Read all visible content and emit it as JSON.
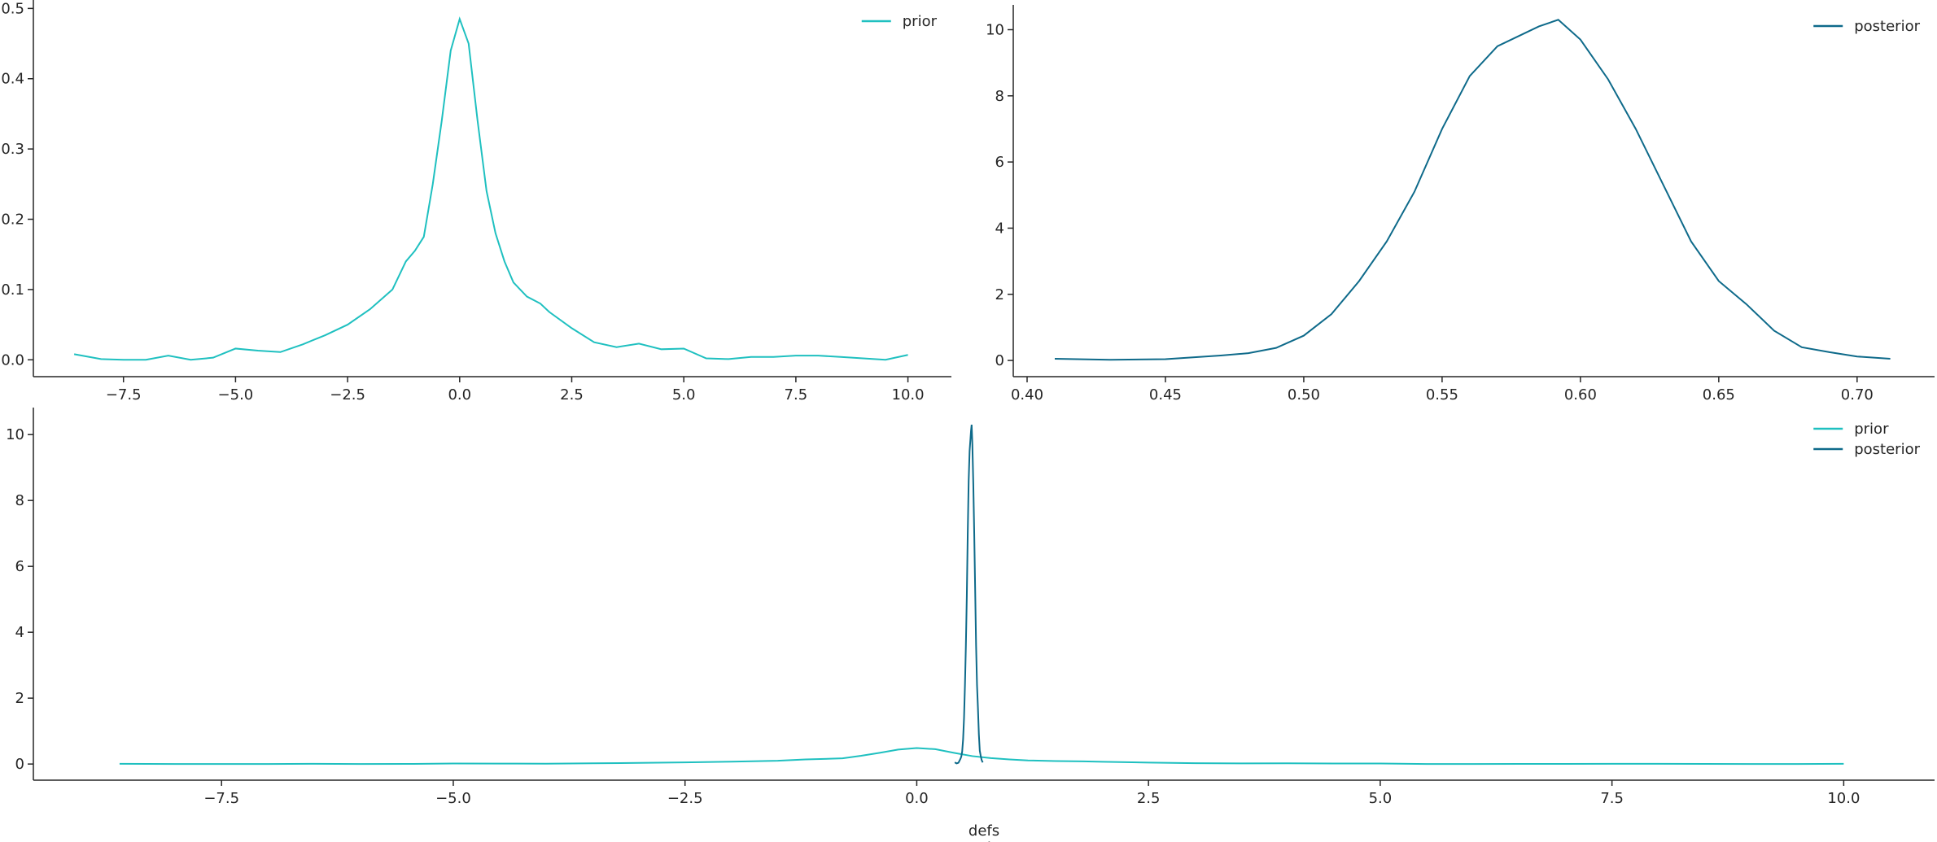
{
  "chart_data": [
    {
      "type": "line",
      "legend": "upper right",
      "xlim": [
        -9.51,
        10.97
      ],
      "ylim": [
        -0.024,
        0.512
      ],
      "xticks": [
        {
          "value": -7.5,
          "label": "−7.5"
        },
        {
          "value": -5,
          "label": "−5.0"
        },
        {
          "value": -2.5,
          "label": "−2.5"
        },
        {
          "value": 0,
          "label": "0.0"
        },
        {
          "value": 2.5,
          "label": "2.5"
        },
        {
          "value": 5,
          "label": "5.0"
        },
        {
          "value": 7.5,
          "label": "7.5"
        },
        {
          "value": 10,
          "label": "10.0"
        }
      ],
      "yticks": [
        {
          "value": 0,
          "label": "0.0"
        },
        0.1,
        0.2,
        0.3,
        0.4,
        0.5
      ],
      "series": [
        {
          "name": "prior",
          "color": "#1fc0c0",
          "x": [
            -8.6,
            -8.0,
            -7.5,
            -7.0,
            -6.5,
            -6.0,
            -5.5,
            -5.0,
            -4.5,
            -4.0,
            -3.5,
            -3.0,
            -2.5,
            -2.0,
            -1.5,
            -1.2,
            -1.0,
            -0.8,
            -0.6,
            -0.4,
            -0.2,
            0.0,
            0.2,
            0.4,
            0.6,
            0.8,
            1.0,
            1.2,
            1.5,
            1.8,
            2.0,
            2.5,
            3.0,
            3.5,
            4.0,
            4.5,
            5.0,
            5.5,
            6.0,
            6.5,
            7.0,
            7.5,
            8.0,
            8.5,
            9.0,
            9.5,
            10.0
          ],
          "values": [
            0.008,
            0.001,
            0.0,
            0.0,
            0.006,
            0.0,
            0.003,
            0.016,
            0.013,
            0.011,
            0.022,
            0.035,
            0.05,
            0.072,
            0.1,
            0.14,
            0.155,
            0.175,
            0.25,
            0.34,
            0.44,
            0.485,
            0.45,
            0.34,
            0.24,
            0.18,
            0.14,
            0.11,
            0.09,
            0.08,
            0.068,
            0.045,
            0.025,
            0.018,
            0.023,
            0.015,
            0.016,
            0.002,
            0.001,
            0.004,
            0.004,
            0.006,
            0.006,
            0.004,
            0.002,
            0.0,
            0.007
          ]
        }
      ]
    },
    {
      "type": "line",
      "legend": "upper right",
      "xlim": [
        0.395,
        0.728
      ],
      "ylim": [
        -0.49,
        10.75
      ],
      "xticks": [
        {
          "value": 0.4,
          "label": "0.40"
        },
        0.45,
        {
          "value": 0.5,
          "label": "0.50"
        },
        0.55,
        {
          "value": 0.6,
          "label": "0.60"
        },
        0.65,
        {
          "value": 0.7,
          "label": "0.70"
        }
      ],
      "yticks": [
        0,
        2,
        4,
        6,
        8,
        10
      ],
      "series": [
        {
          "name": "posterior",
          "color": "#0e6a8a",
          "x": [
            0.41,
            0.43,
            0.45,
            0.47,
            0.48,
            0.49,
            0.5,
            0.51,
            0.52,
            0.53,
            0.54,
            0.55,
            0.56,
            0.57,
            0.58,
            0.585,
            0.592,
            0.6,
            0.61,
            0.62,
            0.63,
            0.64,
            0.65,
            0.66,
            0.67,
            0.68,
            0.69,
            0.7,
            0.712
          ],
          "values": [
            0.05,
            0.02,
            0.04,
            0.15,
            0.22,
            0.38,
            0.75,
            1.4,
            2.4,
            3.6,
            5.1,
            7.0,
            8.6,
            9.5,
            9.9,
            10.1,
            10.3,
            9.7,
            8.5,
            7.0,
            5.3,
            3.6,
            2.4,
            1.7,
            0.9,
            0.4,
            0.25,
            0.12,
            0.05
          ]
        }
      ]
    },
    {
      "type": "line",
      "legend": "upper right",
      "xlabel_lines": [
        "defs",
        "Italy"
      ],
      "xlim": [
        -9.53,
        10.98
      ],
      "ylim": [
        -0.49,
        10.82
      ],
      "xticks": [
        {
          "value": -7.5,
          "label": "−7.5"
        },
        {
          "value": -5,
          "label": "−5.0"
        },
        {
          "value": -2.5,
          "label": "−2.5"
        },
        {
          "value": 0,
          "label": "0.0"
        },
        {
          "value": 2.5,
          "label": "2.5"
        },
        {
          "value": 5,
          "label": "5.0"
        },
        {
          "value": 7.5,
          "label": "7.5"
        },
        {
          "value": 10,
          "label": "10.0"
        }
      ],
      "yticks": [
        0,
        2,
        4,
        6,
        8,
        10
      ],
      "series": [
        {
          "name": "prior",
          "color": "#1fc0c0",
          "x": [
            -8.6,
            -8.0,
            -7.5,
            -7.0,
            -6.5,
            -6.0,
            -5.5,
            -5.0,
            -4.5,
            -4.0,
            -3.5,
            -3.0,
            -2.5,
            -2.0,
            -1.5,
            -1.2,
            -1.0,
            -0.8,
            -0.6,
            -0.4,
            -0.2,
            0.0,
            0.2,
            0.4,
            0.6,
            0.8,
            1.0,
            1.2,
            1.5,
            1.8,
            2.0,
            2.5,
            3.0,
            3.5,
            4.0,
            4.5,
            5.0,
            5.5,
            6.0,
            6.5,
            7.0,
            7.5,
            8.0,
            8.5,
            9.0,
            9.5,
            10.0
          ],
          "values": [
            0.008,
            0.001,
            0.0,
            0.0,
            0.006,
            0.0,
            0.003,
            0.016,
            0.013,
            0.011,
            0.022,
            0.035,
            0.05,
            0.072,
            0.1,
            0.14,
            0.155,
            0.175,
            0.25,
            0.34,
            0.44,
            0.485,
            0.45,
            0.34,
            0.24,
            0.18,
            0.14,
            0.11,
            0.09,
            0.08,
            0.068,
            0.045,
            0.025,
            0.018,
            0.023,
            0.015,
            0.016,
            0.002,
            0.001,
            0.004,
            0.004,
            0.006,
            0.006,
            0.004,
            0.002,
            0.0,
            0.007
          ]
        },
        {
          "name": "posterior",
          "color": "#0e6a8a",
          "x": [
            0.41,
            0.43,
            0.45,
            0.47,
            0.48,
            0.49,
            0.5,
            0.51,
            0.52,
            0.53,
            0.54,
            0.55,
            0.56,
            0.57,
            0.58,
            0.585,
            0.592,
            0.6,
            0.61,
            0.62,
            0.63,
            0.64,
            0.65,
            0.66,
            0.67,
            0.68,
            0.69,
            0.7,
            0.712
          ],
          "values": [
            0.05,
            0.02,
            0.04,
            0.15,
            0.22,
            0.38,
            0.75,
            1.4,
            2.4,
            3.6,
            5.1,
            7.0,
            8.6,
            9.5,
            9.9,
            10.1,
            10.3,
            9.7,
            8.5,
            7.0,
            5.3,
            3.6,
            2.4,
            1.7,
            0.9,
            0.4,
            0.25,
            0.12,
            0.05
          ]
        }
      ]
    }
  ]
}
